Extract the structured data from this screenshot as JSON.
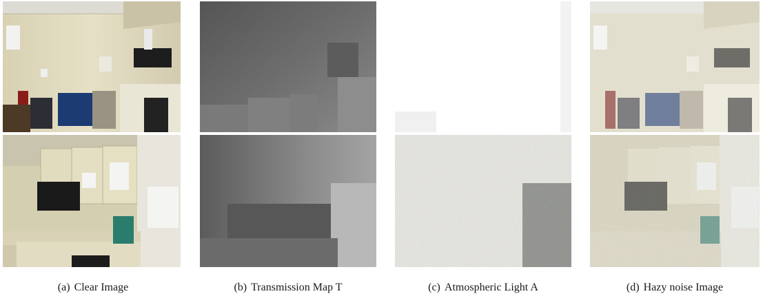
{
  "figure": {
    "panels": [
      {
        "id": "a",
        "tag": "(a)",
        "caption": "Clear Image"
      },
      {
        "id": "b",
        "tag": "(b)",
        "caption": "Transmission Map T"
      },
      {
        "id": "c",
        "tag": "(c)",
        "caption": "Atmospheric Light A"
      },
      {
        "id": "d",
        "tag": "(d)",
        "caption": "Hazy noise Image"
      }
    ]
  }
}
